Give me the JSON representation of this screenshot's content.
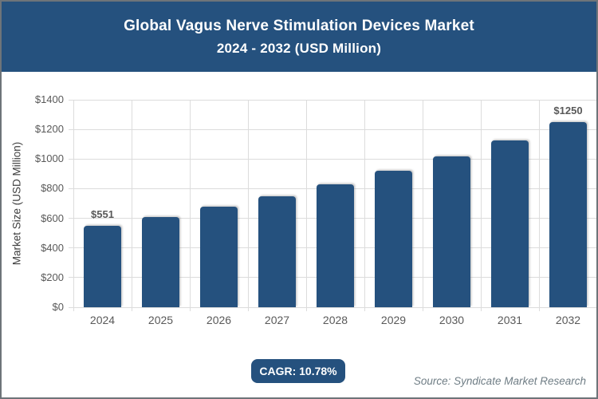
{
  "header": {
    "title_line1": "Global Vagus Nerve Stimulation Devices Market",
    "title_line2": "2024 - 2032 (USD Million)"
  },
  "chart_data": {
    "type": "bar",
    "title": "Global Vagus Nerve Stimulation Devices Market 2024 - 2032 (USD Million)",
    "categories": [
      "2024",
      "2025",
      "2026",
      "2027",
      "2028",
      "2029",
      "2030",
      "2031",
      "2032"
    ],
    "values": [
      551,
      610,
      676,
      749,
      830,
      919,
      1018,
      1128,
      1250
    ],
    "xlabel": "",
    "ylabel": "Market Size (USD Million)",
    "ylim": [
      0,
      1400
    ],
    "ytick_step": 200,
    "ytick_labels": [
      "$0",
      "$200",
      "$400",
      "$600",
      "$800",
      "$1000",
      "$1200",
      "$1400"
    ],
    "annotations": [
      {
        "category": "2024",
        "label": "$551"
      },
      {
        "category": "2032",
        "label": "$1250"
      }
    ],
    "grid": true,
    "legend": "none"
  },
  "footer": {
    "cagr_label": "CAGR: 10.78%",
    "source": "Source: Syndicate Market Research"
  },
  "colors": {
    "header_bg": "#25517E",
    "header_text": "#FFFFFF",
    "bar": "#25517E",
    "gridline": "#DCDCDC",
    "tick_label": "#595959",
    "axis_title": "#404040",
    "annotation_text": "#595959",
    "badge_bg": "#25517E",
    "badge_text": "#FFFFFF",
    "source_text": "#6F7D85",
    "frame_border": "#6E7479",
    "background": "#FFFFFF"
  }
}
